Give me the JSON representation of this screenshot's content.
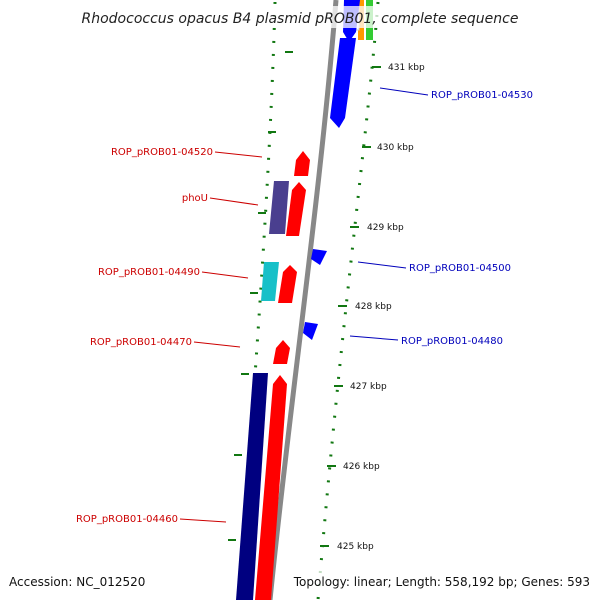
{
  "title": "Rhodococcus opacus B4 plasmid pROB01, complete sequence",
  "footer": {
    "accession": "Accession: NC_012520",
    "summary": "Topology: linear; Length: 558,192 bp; Genes: 593"
  },
  "colors": {
    "label_red": "#cc0000",
    "label_blue": "#0000bb",
    "tick_green": "#117711",
    "gene_red": "#ff0000",
    "gene_blue": "#0000ff",
    "gene_navy": "#000080",
    "gene_purple": "#4a3f8f",
    "gene_cyan": "#17c0c8",
    "backbone": "#888888"
  },
  "ticks": [
    {
      "label": "431 kbp"
    },
    {
      "label": "430 kbp"
    },
    {
      "label": "429 kbp"
    },
    {
      "label": "428 kbp"
    },
    {
      "label": "427 kbp"
    },
    {
      "label": "426 kbp"
    },
    {
      "label": "425 kbp"
    }
  ],
  "labels": {
    "left": [
      "ROP_pROB01-04520",
      "phoU",
      "ROP_pROB01-04490",
      "ROP_pROB01-04470",
      "ROP_pROB01-04460"
    ],
    "right": [
      "ROP_pROB01-04530",
      "ROP_pROB01-04500",
      "ROP_pROB01-04480"
    ]
  }
}
